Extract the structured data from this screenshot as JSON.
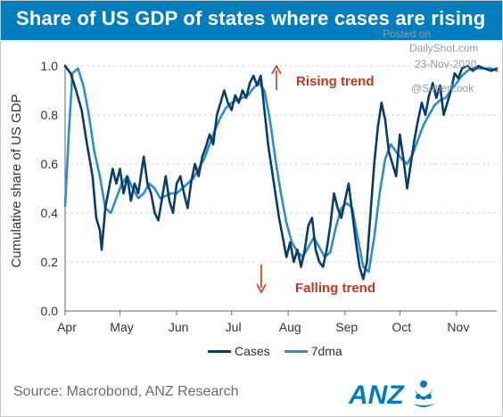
{
  "header": {
    "title": "Share of US GDP of states where cases are rising"
  },
  "watermark": {
    "posted_on": "Posted on",
    "site": "DailyShot.com",
    "date": "23-Nov-2020",
    "handle": "@SoberLook"
  },
  "footer": {
    "source": "Source: Macrobond, ANZ Research",
    "logo_text": "ANZ"
  },
  "colors": {
    "title_bar": "#007dba",
    "cases": "#0b3d6b",
    "seven_dma": "#2a8fc9",
    "annotation": "#c8351f",
    "grid": "#cfcfcf",
    "logo": "#007dba"
  },
  "chart_data": {
    "type": "line",
    "ylabel": "Cumulative share of US GDP",
    "xlabel": "",
    "ylim": [
      0.0,
      1.0
    ],
    "y_ticks": [
      "0.0",
      "0.2",
      "0.4",
      "0.6",
      "0.8",
      "1.0"
    ],
    "x_range": [
      "2020-04-01",
      "2020-11-23"
    ],
    "x_ticks": [
      {
        "label": "Apr",
        "date": "2020-04-01"
      },
      {
        "label": "May",
        "date": "2020-05-01"
      },
      {
        "label": "Jun",
        "date": "2020-06-01"
      },
      {
        "label": "Jul",
        "date": "2020-07-01"
      },
      {
        "label": "Aug",
        "date": "2020-08-01"
      },
      {
        "label": "Sep",
        "date": "2020-09-01"
      },
      {
        "label": "Oct",
        "date": "2020-10-01"
      },
      {
        "label": "Nov",
        "date": "2020-11-01"
      }
    ],
    "grid": "horizontal dashed",
    "legend_position": "bottom-center",
    "annotations": [
      {
        "text": "Rising trend",
        "arrow": "up"
      },
      {
        "text": "Falling trend",
        "arrow": "down"
      }
    ],
    "series": [
      {
        "name": "Cases",
        "points": [
          [
            "2020-04-01",
            1.0
          ],
          [
            "2020-04-04",
            0.97
          ],
          [
            "2020-04-07",
            0.9
          ],
          [
            "2020-04-10",
            0.82
          ],
          [
            "2020-04-13",
            0.68
          ],
          [
            "2020-04-16",
            0.55
          ],
          [
            "2020-04-18",
            0.38
          ],
          [
            "2020-04-20",
            0.33
          ],
          [
            "2020-04-21",
            0.25
          ],
          [
            "2020-04-23",
            0.42
          ],
          [
            "2020-04-25",
            0.5
          ],
          [
            "2020-04-27",
            0.58
          ],
          [
            "2020-04-29",
            0.52
          ],
          [
            "2020-05-01",
            0.58
          ],
          [
            "2020-05-03",
            0.48
          ],
          [
            "2020-05-05",
            0.55
          ],
          [
            "2020-05-07",
            0.45
          ],
          [
            "2020-05-09",
            0.52
          ],
          [
            "2020-05-11",
            0.48
          ],
          [
            "2020-05-14",
            0.63
          ],
          [
            "2020-05-16",
            0.52
          ],
          [
            "2020-05-18",
            0.48
          ],
          [
            "2020-05-20",
            0.4
          ],
          [
            "2020-05-22",
            0.37
          ],
          [
            "2020-05-24",
            0.46
          ],
          [
            "2020-05-26",
            0.55
          ],
          [
            "2020-05-28",
            0.45
          ],
          [
            "2020-05-30",
            0.4
          ],
          [
            "2020-06-01",
            0.52
          ],
          [
            "2020-06-03",
            0.55
          ],
          [
            "2020-06-05",
            0.48
          ],
          [
            "2020-06-07",
            0.42
          ],
          [
            "2020-06-09",
            0.53
          ],
          [
            "2020-06-11",
            0.6
          ],
          [
            "2020-06-13",
            0.55
          ],
          [
            "2020-06-15",
            0.63
          ],
          [
            "2020-06-17",
            0.67
          ],
          [
            "2020-06-19",
            0.72
          ],
          [
            "2020-06-21",
            0.68
          ],
          [
            "2020-06-23",
            0.8
          ],
          [
            "2020-06-25",
            0.85
          ],
          [
            "2020-06-27",
            0.9
          ],
          [
            "2020-06-29",
            0.85
          ],
          [
            "2020-07-01",
            0.82
          ],
          [
            "2020-07-03",
            0.88
          ],
          [
            "2020-07-05",
            0.85
          ],
          [
            "2020-07-07",
            0.9
          ],
          [
            "2020-07-09",
            0.87
          ],
          [
            "2020-07-11",
            0.93
          ],
          [
            "2020-07-13",
            0.96
          ],
          [
            "2020-07-15",
            0.92
          ],
          [
            "2020-07-17",
            0.96
          ],
          [
            "2020-07-19",
            0.82
          ],
          [
            "2020-07-21",
            0.68
          ],
          [
            "2020-07-23",
            0.58
          ],
          [
            "2020-07-25",
            0.48
          ],
          [
            "2020-07-27",
            0.38
          ],
          [
            "2020-07-29",
            0.3
          ],
          [
            "2020-07-31",
            0.22
          ],
          [
            "2020-08-02",
            0.28
          ],
          [
            "2020-08-04",
            0.2
          ],
          [
            "2020-08-06",
            0.25
          ],
          [
            "2020-08-08",
            0.18
          ],
          [
            "2020-08-10",
            0.25
          ],
          [
            "2020-08-12",
            0.35
          ],
          [
            "2020-08-14",
            0.38
          ],
          [
            "2020-08-16",
            0.25
          ],
          [
            "2020-08-18",
            0.2
          ],
          [
            "2020-08-20",
            0.18
          ],
          [
            "2020-08-22",
            0.25
          ],
          [
            "2020-08-24",
            0.35
          ],
          [
            "2020-08-26",
            0.48
          ],
          [
            "2020-08-28",
            0.42
          ],
          [
            "2020-08-30",
            0.38
          ],
          [
            "2020-09-01",
            0.45
          ],
          [
            "2020-09-03",
            0.52
          ],
          [
            "2020-09-05",
            0.4
          ],
          [
            "2020-09-07",
            0.28
          ],
          [
            "2020-09-09",
            0.18
          ],
          [
            "2020-09-11",
            0.13
          ],
          [
            "2020-09-13",
            0.2
          ],
          [
            "2020-09-15",
            0.4
          ],
          [
            "2020-09-17",
            0.6
          ],
          [
            "2020-09-19",
            0.75
          ],
          [
            "2020-09-21",
            0.85
          ],
          [
            "2020-09-23",
            0.78
          ],
          [
            "2020-09-25",
            0.65
          ],
          [
            "2020-09-27",
            0.6
          ],
          [
            "2020-09-29",
            0.55
          ],
          [
            "2020-10-01",
            0.72
          ],
          [
            "2020-10-03",
            0.62
          ],
          [
            "2020-10-05",
            0.5
          ],
          [
            "2020-10-07",
            0.6
          ],
          [
            "2020-10-09",
            0.7
          ],
          [
            "2020-10-11",
            0.78
          ],
          [
            "2020-10-13",
            0.85
          ],
          [
            "2020-10-15",
            0.8
          ],
          [
            "2020-10-17",
            0.88
          ],
          [
            "2020-10-19",
            0.93
          ],
          [
            "2020-10-21",
            0.87
          ],
          [
            "2020-10-23",
            0.92
          ],
          [
            "2020-10-25",
            0.8
          ],
          [
            "2020-10-27",
            0.85
          ],
          [
            "2020-10-29",
            0.9
          ],
          [
            "2020-10-31",
            0.97
          ],
          [
            "2020-11-02",
            0.95
          ],
          [
            "2020-11-04",
            0.99
          ],
          [
            "2020-11-07",
            1.0
          ],
          [
            "2020-11-10",
            0.98
          ],
          [
            "2020-11-13",
            1.0
          ],
          [
            "2020-11-16",
            0.99
          ],
          [
            "2020-11-20",
            0.98
          ],
          [
            "2020-11-23",
            0.99
          ]
        ]
      },
      {
        "name": "7dma",
        "points": [
          [
            "2020-04-01",
            0.43
          ],
          [
            "2020-04-03",
            0.72
          ],
          [
            "2020-04-05",
            0.97
          ],
          [
            "2020-04-08",
            0.99
          ],
          [
            "2020-04-11",
            0.92
          ],
          [
            "2020-04-14",
            0.8
          ],
          [
            "2020-04-17",
            0.65
          ],
          [
            "2020-04-20",
            0.55
          ],
          [
            "2020-04-23",
            0.42
          ],
          [
            "2020-04-26",
            0.4
          ],
          [
            "2020-04-29",
            0.46
          ],
          [
            "2020-05-02",
            0.52
          ],
          [
            "2020-05-05",
            0.55
          ],
          [
            "2020-05-08",
            0.5
          ],
          [
            "2020-05-11",
            0.46
          ],
          [
            "2020-05-14",
            0.48
          ],
          [
            "2020-05-17",
            0.52
          ],
          [
            "2020-05-20",
            0.5
          ],
          [
            "2020-05-23",
            0.46
          ],
          [
            "2020-05-26",
            0.47
          ],
          [
            "2020-05-29",
            0.48
          ],
          [
            "2020-06-01",
            0.48
          ],
          [
            "2020-06-04",
            0.5
          ],
          [
            "2020-06-07",
            0.52
          ],
          [
            "2020-06-10",
            0.54
          ],
          [
            "2020-06-13",
            0.58
          ],
          [
            "2020-06-16",
            0.62
          ],
          [
            "2020-06-19",
            0.68
          ],
          [
            "2020-06-22",
            0.74
          ],
          [
            "2020-06-25",
            0.79
          ],
          [
            "2020-06-28",
            0.83
          ],
          [
            "2020-07-01",
            0.85
          ],
          [
            "2020-07-04",
            0.86
          ],
          [
            "2020-07-07",
            0.87
          ],
          [
            "2020-07-10",
            0.88
          ],
          [
            "2020-07-13",
            0.91
          ],
          [
            "2020-07-16",
            0.93
          ],
          [
            "2020-07-19",
            0.9
          ],
          [
            "2020-07-22",
            0.78
          ],
          [
            "2020-07-25",
            0.62
          ],
          [
            "2020-07-28",
            0.48
          ],
          [
            "2020-07-31",
            0.36
          ],
          [
            "2020-08-03",
            0.28
          ],
          [
            "2020-08-06",
            0.24
          ],
          [
            "2020-08-09",
            0.22
          ],
          [
            "2020-08-12",
            0.26
          ],
          [
            "2020-08-15",
            0.3
          ],
          [
            "2020-08-18",
            0.26
          ],
          [
            "2020-08-21",
            0.22
          ],
          [
            "2020-08-24",
            0.24
          ],
          [
            "2020-08-27",
            0.34
          ],
          [
            "2020-08-30",
            0.42
          ],
          [
            "2020-09-02",
            0.44
          ],
          [
            "2020-09-05",
            0.42
          ],
          [
            "2020-09-08",
            0.3
          ],
          [
            "2020-09-11",
            0.18
          ],
          [
            "2020-09-14",
            0.16
          ],
          [
            "2020-09-17",
            0.3
          ],
          [
            "2020-09-20",
            0.48
          ],
          [
            "2020-09-23",
            0.62
          ],
          [
            "2020-09-26",
            0.68
          ],
          [
            "2020-09-29",
            0.65
          ],
          [
            "2020-10-02",
            0.62
          ],
          [
            "2020-10-05",
            0.6
          ],
          [
            "2020-10-08",
            0.64
          ],
          [
            "2020-10-11",
            0.7
          ],
          [
            "2020-10-14",
            0.76
          ],
          [
            "2020-10-17",
            0.8
          ],
          [
            "2020-10-20",
            0.84
          ],
          [
            "2020-10-23",
            0.86
          ],
          [
            "2020-10-26",
            0.87
          ],
          [
            "2020-10-29",
            0.9
          ],
          [
            "2020-11-01",
            0.93
          ],
          [
            "2020-11-04",
            0.96
          ],
          [
            "2020-11-07",
            0.98
          ],
          [
            "2020-11-10",
            0.99
          ],
          [
            "2020-11-13",
            0.99
          ],
          [
            "2020-11-16",
            0.99
          ],
          [
            "2020-11-20",
            0.99
          ],
          [
            "2020-11-23",
            0.98
          ]
        ]
      }
    ]
  }
}
